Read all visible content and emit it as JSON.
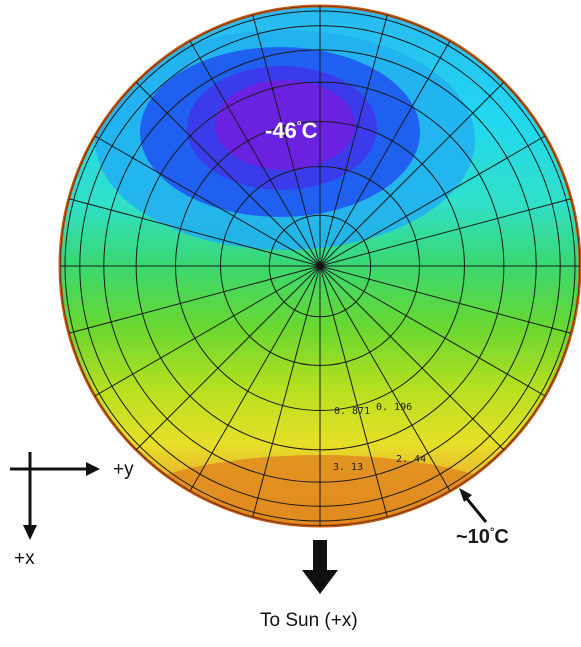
{
  "annotations": {
    "cold_label": "-46",
    "cold_unit": "C",
    "warm_label": "~10",
    "warm_unit": "C",
    "degree_symbol": "°"
  },
  "axes": {
    "y_label": "+y",
    "x_label": "+x"
  },
  "sun": {
    "label": "To Sun (+x)"
  },
  "contour_values": [
    "0. 871",
    "0. 196",
    "3. 13",
    "2. 44"
  ],
  "colors": {
    "coldest": "#6a1ee0",
    "cold": "#2448e8",
    "cool": "#22c8e8",
    "mild": "#38d8a0",
    "green": "#5ad838",
    "yellow_green": "#b8e020",
    "yellow": "#e8e028",
    "orange": "#e89a28",
    "mesh": "#1a1a1a"
  }
}
